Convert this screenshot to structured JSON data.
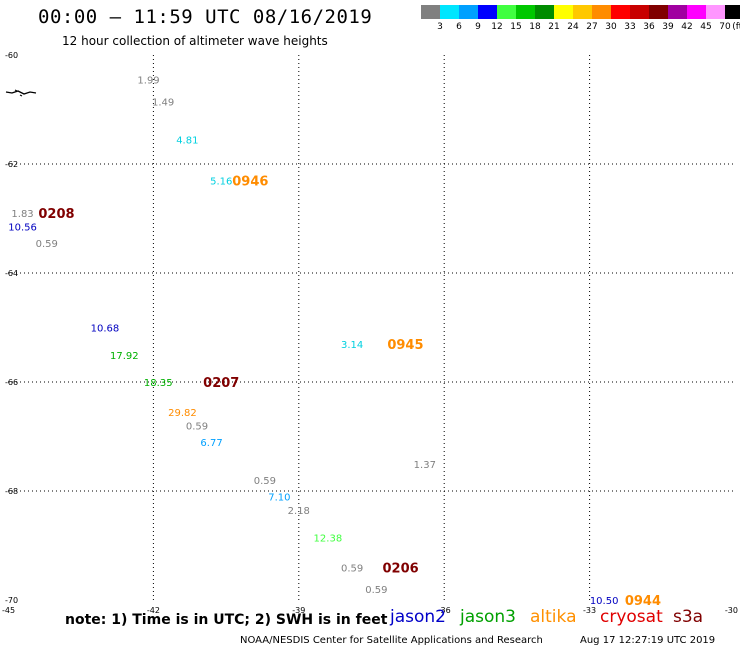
{
  "header": {
    "title": "00:00 – 11:59 UTC 08/16/2019",
    "subtitle": "12 hour collection of altimeter wave heights"
  },
  "color_scale": {
    "unit": "(ft)",
    "bins": [
      {
        "label": "3",
        "color": "#808080"
      },
      {
        "label": "6",
        "color": "#00e6ff"
      },
      {
        "label": "9",
        "color": "#00a0ff"
      },
      {
        "label": "12",
        "color": "#0000ff"
      },
      {
        "label": "15",
        "color": "#40ff40"
      },
      {
        "label": "18",
        "color": "#00c800"
      },
      {
        "label": "21",
        "color": "#008c00"
      },
      {
        "label": "24",
        "color": "#ffff00"
      },
      {
        "label": "27",
        "color": "#ffc800"
      },
      {
        "label": "30",
        "color": "#ff8c00"
      },
      {
        "label": "33",
        "color": "#ff0000"
      },
      {
        "label": "36",
        "color": "#c80000"
      },
      {
        "label": "39",
        "color": "#800000"
      },
      {
        "label": "42",
        "color": "#a000a0"
      },
      {
        "label": "45",
        "color": "#ff00ff"
      },
      {
        "label": "70",
        "color": "#ff96ff"
      },
      {
        "label": "",
        "color": "#000000"
      }
    ]
  },
  "map": {
    "lon_range": [
      -45,
      -30
    ],
    "lat_range": [
      -70,
      -60
    ],
    "lon_gridlines": [
      -42,
      -39,
      -36,
      -33
    ],
    "lat_gridlines": [
      -62,
      -64,
      -66,
      -68
    ],
    "lon_labels": [
      {
        "lon": -45,
        "text": "-45"
      },
      {
        "lon": -42,
        "text": "-42"
      },
      {
        "lon": -39,
        "text": "-39"
      },
      {
        "lon": -36,
        "text": "-36"
      },
      {
        "lon": -33,
        "text": "-33"
      },
      {
        "lon": -30,
        "text": "-30"
      }
    ],
    "lat_labels": [
      {
        "lat": -60,
        "text": "-60"
      },
      {
        "lat": -62,
        "text": "-62"
      },
      {
        "lat": -64,
        "text": "-64"
      },
      {
        "lat": -66,
        "text": "-66"
      },
      {
        "lat": -68,
        "text": "-68"
      },
      {
        "lat": -70,
        "text": "-70"
      }
    ],
    "observations": [
      {
        "lon": -42.1,
        "lat": -60.45,
        "text": "1.99",
        "color": "#808080"
      },
      {
        "lon": -41.8,
        "lat": -60.85,
        "text": "1.49",
        "color": "#808080"
      },
      {
        "lon": -41.3,
        "lat": -61.55,
        "text": "4.81",
        "color": "#00d0e0"
      },
      {
        "lon": -40.6,
        "lat": -62.3,
        "text": "5.16",
        "color": "#00d0e0"
      },
      {
        "lon": -44.7,
        "lat": -62.9,
        "text": "1.83",
        "color": "#808080"
      },
      {
        "lon": -44.7,
        "lat": -63.15,
        "text": "10.56",
        "color": "#0000c0"
      },
      {
        "lon": -44.2,
        "lat": -63.45,
        "text": "0.59",
        "color": "#808080"
      },
      {
        "lon": -43.0,
        "lat": -65.0,
        "text": "10.68",
        "color": "#0000c0"
      },
      {
        "lon": -42.6,
        "lat": -65.5,
        "text": "17.92",
        "color": "#00b000"
      },
      {
        "lon": -41.9,
        "lat": -66.0,
        "text": "18.35",
        "color": "#00b000"
      },
      {
        "lon": -41.4,
        "lat": -66.55,
        "text": "29.82",
        "color": "#ff8c00"
      },
      {
        "lon": -41.1,
        "lat": -66.8,
        "text": "0.59",
        "color": "#808080"
      },
      {
        "lon": -40.8,
        "lat": -67.1,
        "text": "6.77",
        "color": "#00a0ff"
      },
      {
        "lon": -39.7,
        "lat": -67.8,
        "text": "0.59",
        "color": "#808080"
      },
      {
        "lon": -39.4,
        "lat": -68.1,
        "text": "7.10",
        "color": "#00a0ff"
      },
      {
        "lon": -39.0,
        "lat": -68.35,
        "text": "2.18",
        "color": "#808080"
      },
      {
        "lon": -38.4,
        "lat": -68.85,
        "text": "12.38",
        "color": "#40ff40"
      },
      {
        "lon": -37.9,
        "lat": -69.4,
        "text": "0.59",
        "color": "#808080"
      },
      {
        "lon": -37.4,
        "lat": -69.8,
        "text": "0.59",
        "color": "#808080"
      },
      {
        "lon": -36.4,
        "lat": -67.5,
        "text": "1.37",
        "color": "#808080"
      },
      {
        "lon": -37.9,
        "lat": -65.3,
        "text": "3.14",
        "color": "#00d0e0"
      },
      {
        "lon": -32.7,
        "lat": -70.0,
        "text": "10.50",
        "color": "#0000c0"
      }
    ],
    "pass_times": [
      {
        "lon": -40.0,
        "lat": -62.3,
        "text": "0946",
        "color": "#ff8c00"
      },
      {
        "lon": -44.0,
        "lat": -62.9,
        "text": "0208",
        "color": "#800000"
      },
      {
        "lon": -40.6,
        "lat": -66.0,
        "text": "0207",
        "color": "#800000"
      },
      {
        "lon": -36.8,
        "lat": -65.3,
        "text": "0945",
        "color": "#ff8c00"
      },
      {
        "lon": -36.9,
        "lat": -69.4,
        "text": "0206",
        "color": "#800000"
      },
      {
        "lon": -31.9,
        "lat": -70.0,
        "text": "0944",
        "color": "#ff8c00"
      }
    ]
  },
  "footer": {
    "note": "note: 1) Time is in UTC; 2) SWH is in feet",
    "satellites": [
      {
        "name": "jason2",
        "color": "#0000c8"
      },
      {
        "name": "jason3",
        "color": "#00a000"
      },
      {
        "name": "altika",
        "color": "#ff9000"
      },
      {
        "name": "cryosat",
        "color": "#e00000"
      },
      {
        "name": "s3a",
        "color": "#800000"
      }
    ],
    "credit": "NOAA/NESDIS Center for Satellite Applications and Research",
    "timestamp": "Aug 17 12:27:19 UTC 2019"
  }
}
